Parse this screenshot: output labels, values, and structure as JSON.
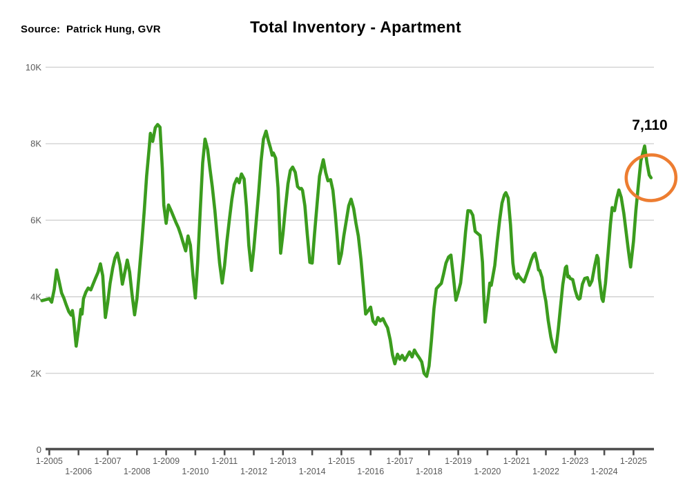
{
  "header": {
    "source": "Source:  Patrick Hung, GVR",
    "title": "Total Inventory - Apartment"
  },
  "annotation": {
    "value": "7,110",
    "circled_point": {
      "year": 2025.6,
      "value": 7110
    }
  },
  "colors": {
    "line": "#3b9c1e",
    "highlight": "#ed7d31",
    "grid": "#c9c9c9",
    "axis": "#4f4f4f",
    "tick_label": "#595959",
    "text": "#000000"
  },
  "chart_data": {
    "type": "line",
    "title": "Total Inventory - Apartment",
    "xlabel": "",
    "ylabel": "",
    "ylim": [
      0,
      10000
    ],
    "xlim": [
      2004.7,
      2025.75
    ],
    "grid": "horizontal",
    "legend": "none",
    "y_ticks": [
      {
        "label": "10K",
        "value": 10000
      },
      {
        "label": "8K",
        "value": 8000
      },
      {
        "label": "6K",
        "value": 6000
      },
      {
        "label": "4K",
        "value": 4000
      },
      {
        "label": "2K",
        "value": 2000
      },
      {
        "label": "0",
        "value": 0
      }
    ],
    "x_ticks": [
      {
        "label": "1-2005",
        "year": 2005,
        "row": 1
      },
      {
        "label": "1-2006",
        "year": 2006,
        "row": 2
      },
      {
        "label": "1-2007",
        "year": 2007,
        "row": 1
      },
      {
        "label": "1-2008",
        "year": 2008,
        "row": 2
      },
      {
        "label": "1-2009",
        "year": 2009,
        "row": 1
      },
      {
        "label": "1-2010",
        "year": 2010,
        "row": 2
      },
      {
        "label": "1-2011",
        "year": 2011,
        "row": 1
      },
      {
        "label": "1-2012",
        "year": 2012,
        "row": 2
      },
      {
        "label": "1-2013",
        "year": 2013,
        "row": 1
      },
      {
        "label": "1-2014",
        "year": 2014,
        "row": 2
      },
      {
        "label": "1-2015",
        "year": 2015,
        "row": 1
      },
      {
        "label": "1-2016",
        "year": 2016,
        "row": 2
      },
      {
        "label": "1-2017",
        "year": 2017,
        "row": 1
      },
      {
        "label": "1-2018",
        "year": 2018,
        "row": 2
      },
      {
        "label": "1-2019",
        "year": 2019,
        "row": 1
      },
      {
        "label": "1-2020",
        "year": 2020,
        "row": 2
      },
      {
        "label": "1-2021",
        "year": 2021,
        "row": 1
      },
      {
        "label": "1-2022",
        "year": 2022,
        "row": 2
      },
      {
        "label": "1-2023",
        "year": 2023,
        "row": 1
      },
      {
        "label": "1-2024",
        "year": 2024,
        "row": 2
      },
      {
        "label": "1-2025",
        "year": 2025,
        "row": 1
      }
    ],
    "series": [
      {
        "name": "Total Inventory - Apartment",
        "points": [
          [
            2004.75,
            3900
          ],
          [
            2005.0,
            3950
          ],
          [
            2005.08,
            3860
          ],
          [
            2005.17,
            4200
          ],
          [
            2005.25,
            4700
          ],
          [
            2005.33,
            4420
          ],
          [
            2005.42,
            4100
          ],
          [
            2005.5,
            3960
          ],
          [
            2005.58,
            3790
          ],
          [
            2005.67,
            3610
          ],
          [
            2005.75,
            3520
          ],
          [
            2005.79,
            3640
          ],
          [
            2005.83,
            3430
          ],
          [
            2005.92,
            2710
          ],
          [
            2006.0,
            3150
          ],
          [
            2006.08,
            3670
          ],
          [
            2006.12,
            3550
          ],
          [
            2006.17,
            3950
          ],
          [
            2006.25,
            4120
          ],
          [
            2006.33,
            4230
          ],
          [
            2006.42,
            4180
          ],
          [
            2006.5,
            4330
          ],
          [
            2006.58,
            4480
          ],
          [
            2006.67,
            4640
          ],
          [
            2006.75,
            4860
          ],
          [
            2006.83,
            4550
          ],
          [
            2006.92,
            3460
          ],
          [
            2007.0,
            3850
          ],
          [
            2007.08,
            4350
          ],
          [
            2007.17,
            4750
          ],
          [
            2007.25,
            5020
          ],
          [
            2007.33,
            5140
          ],
          [
            2007.42,
            4830
          ],
          [
            2007.5,
            4330
          ],
          [
            2007.58,
            4620
          ],
          [
            2007.67,
            4960
          ],
          [
            2007.75,
            4650
          ],
          [
            2007.83,
            4080
          ],
          [
            2007.92,
            3530
          ],
          [
            2008.0,
            3950
          ],
          [
            2008.08,
            4650
          ],
          [
            2008.17,
            5450
          ],
          [
            2008.25,
            6250
          ],
          [
            2008.33,
            7150
          ],
          [
            2008.42,
            7900
          ],
          [
            2008.46,
            8270
          ],
          [
            2008.54,
            8060
          ],
          [
            2008.63,
            8420
          ],
          [
            2008.71,
            8500
          ],
          [
            2008.79,
            8430
          ],
          [
            2008.87,
            7350
          ],
          [
            2008.92,
            6400
          ],
          [
            2009.0,
            5920
          ],
          [
            2009.08,
            6400
          ],
          [
            2009.17,
            6250
          ],
          [
            2009.25,
            6100
          ],
          [
            2009.33,
            5950
          ],
          [
            2009.42,
            5800
          ],
          [
            2009.5,
            5620
          ],
          [
            2009.58,
            5420
          ],
          [
            2009.67,
            5200
          ],
          [
            2009.75,
            5590
          ],
          [
            2009.83,
            5350
          ],
          [
            2009.92,
            4550
          ],
          [
            2010.0,
            3970
          ],
          [
            2010.08,
            4900
          ],
          [
            2010.17,
            6300
          ],
          [
            2010.25,
            7500
          ],
          [
            2010.33,
            8120
          ],
          [
            2010.42,
            7850
          ],
          [
            2010.5,
            7350
          ],
          [
            2010.58,
            6880
          ],
          [
            2010.67,
            6250
          ],
          [
            2010.75,
            5550
          ],
          [
            2010.83,
            4880
          ],
          [
            2010.92,
            4360
          ],
          [
            2011.0,
            4820
          ],
          [
            2011.08,
            5450
          ],
          [
            2011.17,
            6050
          ],
          [
            2011.25,
            6550
          ],
          [
            2011.33,
            6930
          ],
          [
            2011.42,
            7090
          ],
          [
            2011.5,
            6980
          ],
          [
            2011.58,
            7210
          ],
          [
            2011.67,
            7080
          ],
          [
            2011.75,
            6350
          ],
          [
            2011.83,
            5350
          ],
          [
            2011.92,
            4690
          ],
          [
            2012.0,
            5250
          ],
          [
            2012.08,
            5950
          ],
          [
            2012.17,
            6750
          ],
          [
            2012.25,
            7550
          ],
          [
            2012.33,
            8120
          ],
          [
            2012.42,
            8330
          ],
          [
            2012.5,
            8080
          ],
          [
            2012.58,
            7870
          ],
          [
            2012.63,
            7700
          ],
          [
            2012.67,
            7760
          ],
          [
            2012.75,
            7620
          ],
          [
            2012.83,
            6850
          ],
          [
            2012.88,
            5900
          ],
          [
            2012.92,
            5140
          ],
          [
            2013.0,
            5650
          ],
          [
            2013.08,
            6300
          ],
          [
            2013.17,
            6950
          ],
          [
            2013.25,
            7300
          ],
          [
            2013.33,
            7390
          ],
          [
            2013.42,
            7250
          ],
          [
            2013.5,
            6880
          ],
          [
            2013.58,
            6820
          ],
          [
            2013.63,
            6830
          ],
          [
            2013.67,
            6780
          ],
          [
            2013.75,
            6380
          ],
          [
            2013.83,
            5650
          ],
          [
            2013.92,
            4900
          ],
          [
            2014.0,
            4880
          ],
          [
            2014.08,
            5650
          ],
          [
            2014.17,
            6450
          ],
          [
            2014.25,
            7150
          ],
          [
            2014.38,
            7580
          ],
          [
            2014.46,
            7250
          ],
          [
            2014.54,
            7030
          ],
          [
            2014.63,
            7060
          ],
          [
            2014.71,
            6780
          ],
          [
            2014.79,
            6180
          ],
          [
            2014.87,
            5420
          ],
          [
            2014.92,
            4870
          ],
          [
            2015.0,
            5120
          ],
          [
            2015.08,
            5580
          ],
          [
            2015.17,
            6000
          ],
          [
            2015.25,
            6380
          ],
          [
            2015.33,
            6550
          ],
          [
            2015.42,
            6300
          ],
          [
            2015.5,
            5920
          ],
          [
            2015.58,
            5590
          ],
          [
            2015.67,
            4980
          ],
          [
            2015.75,
            4280
          ],
          [
            2015.83,
            3550
          ],
          [
            2015.92,
            3640
          ],
          [
            2016.0,
            3730
          ],
          [
            2016.08,
            3370
          ],
          [
            2016.17,
            3280
          ],
          [
            2016.25,
            3460
          ],
          [
            2016.33,
            3370
          ],
          [
            2016.42,
            3430
          ],
          [
            2016.5,
            3300
          ],
          [
            2016.58,
            3190
          ],
          [
            2016.67,
            2880
          ],
          [
            2016.75,
            2480
          ],
          [
            2016.83,
            2250
          ],
          [
            2016.92,
            2500
          ],
          [
            2017.0,
            2370
          ],
          [
            2017.08,
            2470
          ],
          [
            2017.17,
            2340
          ],
          [
            2017.25,
            2450
          ],
          [
            2017.33,
            2560
          ],
          [
            2017.42,
            2430
          ],
          [
            2017.5,
            2610
          ],
          [
            2017.58,
            2500
          ],
          [
            2017.67,
            2400
          ],
          [
            2017.75,
            2300
          ],
          [
            2017.83,
            2000
          ],
          [
            2017.92,
            1920
          ],
          [
            2018.0,
            2190
          ],
          [
            2018.08,
            2850
          ],
          [
            2018.17,
            3700
          ],
          [
            2018.25,
            4210
          ],
          [
            2018.33,
            4280
          ],
          [
            2018.42,
            4350
          ],
          [
            2018.5,
            4600
          ],
          [
            2018.58,
            4880
          ],
          [
            2018.67,
            5040
          ],
          [
            2018.75,
            5090
          ],
          [
            2018.83,
            4550
          ],
          [
            2018.92,
            3910
          ],
          [
            2019.0,
            4120
          ],
          [
            2019.08,
            4360
          ],
          [
            2019.17,
            5000
          ],
          [
            2019.25,
            5700
          ],
          [
            2019.33,
            6250
          ],
          [
            2019.42,
            6240
          ],
          [
            2019.5,
            6130
          ],
          [
            2019.58,
            5710
          ],
          [
            2019.67,
            5650
          ],
          [
            2019.75,
            5600
          ],
          [
            2019.83,
            4900
          ],
          [
            2019.87,
            4100
          ],
          [
            2019.92,
            3340
          ],
          [
            2020.0,
            3820
          ],
          [
            2020.08,
            4360
          ],
          [
            2020.13,
            4300
          ],
          [
            2020.25,
            4820
          ],
          [
            2020.33,
            5420
          ],
          [
            2020.42,
            6020
          ],
          [
            2020.5,
            6450
          ],
          [
            2020.58,
            6660
          ],
          [
            2020.63,
            6720
          ],
          [
            2020.71,
            6580
          ],
          [
            2020.79,
            5880
          ],
          [
            2020.87,
            4880
          ],
          [
            2020.92,
            4600
          ],
          [
            2021.0,
            4480
          ],
          [
            2021.04,
            4600
          ],
          [
            2021.08,
            4540
          ],
          [
            2021.17,
            4450
          ],
          [
            2021.25,
            4390
          ],
          [
            2021.33,
            4560
          ],
          [
            2021.42,
            4760
          ],
          [
            2021.5,
            4950
          ],
          [
            2021.58,
            5100
          ],
          [
            2021.63,
            5140
          ],
          [
            2021.71,
            4880
          ],
          [
            2021.75,
            4700
          ],
          [
            2021.79,
            4690
          ],
          [
            2021.87,
            4500
          ],
          [
            2021.92,
            4200
          ],
          [
            2022.0,
            3880
          ],
          [
            2022.08,
            3380
          ],
          [
            2022.17,
            2950
          ],
          [
            2022.25,
            2680
          ],
          [
            2022.33,
            2560
          ],
          [
            2022.42,
            3120
          ],
          [
            2022.5,
            3720
          ],
          [
            2022.58,
            4320
          ],
          [
            2022.67,
            4760
          ],
          [
            2022.71,
            4800
          ],
          [
            2022.75,
            4520
          ],
          [
            2022.79,
            4540
          ],
          [
            2022.83,
            4480
          ],
          [
            2022.92,
            4450
          ],
          [
            2023.0,
            4180
          ],
          [
            2023.08,
            3980
          ],
          [
            2023.13,
            3940
          ],
          [
            2023.17,
            3960
          ],
          [
            2023.25,
            4330
          ],
          [
            2023.33,
            4480
          ],
          [
            2023.42,
            4500
          ],
          [
            2023.5,
            4300
          ],
          [
            2023.58,
            4420
          ],
          [
            2023.67,
            4800
          ],
          [
            2023.75,
            5080
          ],
          [
            2023.79,
            5000
          ],
          [
            2023.83,
            4480
          ],
          [
            2023.92,
            3950
          ],
          [
            2023.96,
            3880
          ],
          [
            2024.04,
            4350
          ],
          [
            2024.13,
            5150
          ],
          [
            2024.21,
            5900
          ],
          [
            2024.27,
            6330
          ],
          [
            2024.35,
            6250
          ],
          [
            2024.42,
            6550
          ],
          [
            2024.5,
            6790
          ],
          [
            2024.58,
            6600
          ],
          [
            2024.67,
            6180
          ],
          [
            2024.75,
            5680
          ],
          [
            2024.83,
            5180
          ],
          [
            2024.9,
            4780
          ],
          [
            2025.0,
            5450
          ],
          [
            2025.08,
            6250
          ],
          [
            2025.17,
            6950
          ],
          [
            2025.25,
            7550
          ],
          [
            2025.38,
            7940
          ],
          [
            2025.46,
            7500
          ],
          [
            2025.54,
            7180
          ],
          [
            2025.6,
            7110
          ]
        ]
      }
    ]
  }
}
